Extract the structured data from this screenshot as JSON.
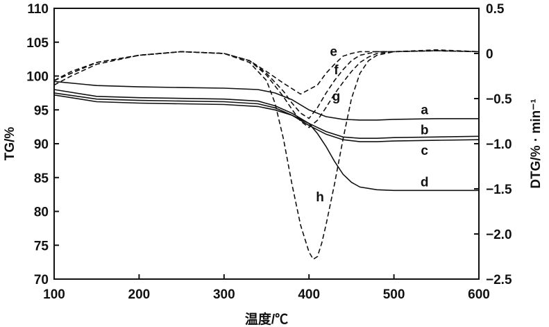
{
  "chart_data": {
    "type": "line",
    "title": "",
    "xlabel": "温度/℃",
    "ylabel": "TG/%",
    "y2label": "DTG/% · min⁻¹",
    "xlim": [
      100,
      600
    ],
    "ylim": [
      70,
      110
    ],
    "y2lim": [
      -2.5,
      0.5
    ],
    "xticks": [
      "100",
      "200",
      "300",
      "400",
      "500",
      "600"
    ],
    "yticks": [
      "70",
      "75",
      "80",
      "85",
      "90",
      "95",
      "100",
      "105",
      "110"
    ],
    "y2ticks": [
      "−2.5",
      "−2.0",
      "−1.5",
      "−1.0",
      "−0.5",
      "0",
      "0.5"
    ],
    "grid": false,
    "legend": "none",
    "tg_series": [
      {
        "name": "a",
        "style": "solid",
        "x": [
          100,
          150,
          200,
          250,
          300,
          340,
          360,
          380,
          400,
          420,
          440,
          460,
          480,
          500,
          550,
          600
        ],
        "y": [
          99.2,
          98.6,
          98.4,
          98.3,
          98.2,
          98.0,
          97.5,
          96.5,
          95.0,
          94.0,
          93.6,
          93.5,
          93.5,
          93.6,
          93.7,
          93.7
        ]
      },
      {
        "name": "b",
        "style": "solid",
        "x": [
          100,
          150,
          200,
          250,
          300,
          340,
          360,
          380,
          400,
          420,
          440,
          460,
          480,
          500,
          550,
          600
        ],
        "y": [
          98.0,
          97.0,
          96.8,
          96.7,
          96.6,
          96.3,
          95.6,
          94.5,
          93.0,
          91.8,
          91.0,
          90.8,
          90.8,
          90.9,
          91.0,
          91.1
        ]
      },
      {
        "name": "c",
        "style": "solid",
        "x": [
          100,
          150,
          200,
          250,
          300,
          340,
          360,
          380,
          400,
          420,
          440,
          460,
          480,
          500,
          550,
          600
        ],
        "y": [
          97.5,
          96.6,
          96.4,
          96.3,
          96.2,
          95.9,
          95.3,
          94.2,
          92.7,
          91.4,
          90.6,
          90.3,
          90.3,
          90.4,
          90.5,
          90.6
        ]
      },
      {
        "name": "d",
        "style": "solid",
        "x": [
          100,
          150,
          200,
          250,
          300,
          340,
          360,
          380,
          400,
          410,
          420,
          430,
          440,
          450,
          460,
          480,
          500,
          550,
          600
        ],
        "y": [
          97.2,
          96.2,
          96.0,
          95.9,
          95.8,
          95.5,
          95.0,
          94.2,
          93.0,
          91.5,
          89.6,
          87.4,
          85.5,
          84.3,
          83.6,
          83.2,
          83.1,
          83.1,
          83.1
        ]
      }
    ],
    "dtg_series": [
      {
        "name": "e",
        "style": "dashed",
        "x": [
          100,
          120,
          150,
          200,
          250,
          300,
          330,
          350,
          370,
          390,
          410,
          420,
          430,
          440,
          450,
          460,
          480,
          500,
          550,
          600
        ],
        "y": [
          -0.35,
          -0.25,
          -0.12,
          -0.02,
          0.02,
          0.0,
          -0.08,
          -0.2,
          -0.33,
          -0.45,
          -0.35,
          -0.22,
          -0.12,
          -0.03,
          0.0,
          0.02,
          0.02,
          0.02,
          0.04,
          0.02
        ]
      },
      {
        "name": "f",
        "style": "dashed",
        "x": [
          100,
          120,
          150,
          200,
          250,
          300,
          330,
          350,
          370,
          380,
          390,
          400,
          410,
          420,
          430,
          440,
          450,
          460,
          470,
          480,
          500,
          550,
          600
        ],
        "y": [
          -0.3,
          -0.22,
          -0.1,
          -0.02,
          0.02,
          0.0,
          -0.08,
          -0.22,
          -0.42,
          -0.55,
          -0.66,
          -0.72,
          -0.6,
          -0.44,
          -0.3,
          -0.18,
          -0.08,
          -0.02,
          0.0,
          0.02,
          0.02,
          0.03,
          0.02
        ]
      },
      {
        "name": "g",
        "style": "dashed",
        "x": [
          100,
          120,
          150,
          200,
          250,
          300,
          330,
          350,
          370,
          380,
          390,
          400,
          410,
          420,
          430,
          440,
          450,
          460,
          470,
          480,
          500,
          550,
          600
        ],
        "y": [
          -0.3,
          -0.22,
          -0.1,
          -0.02,
          0.02,
          0.0,
          -0.08,
          -0.24,
          -0.48,
          -0.62,
          -0.75,
          -0.82,
          -0.74,
          -0.6,
          -0.45,
          -0.32,
          -0.2,
          -0.1,
          -0.04,
          0.0,
          0.02,
          0.03,
          0.02
        ]
      },
      {
        "name": "h",
        "style": "dashed",
        "x": [
          100,
          120,
          150,
          200,
          250,
          300,
          330,
          350,
          360,
          370,
          380,
          390,
          400,
          405,
          410,
          415,
          420,
          430,
          440,
          450,
          460,
          470,
          480,
          490,
          500,
          550,
          600
        ],
        "y": [
          -0.3,
          -0.2,
          -0.1,
          -0.02,
          0.02,
          0.0,
          -0.1,
          -0.3,
          -0.55,
          -0.95,
          -1.45,
          -1.9,
          -2.2,
          -2.28,
          -2.25,
          -2.1,
          -1.9,
          -1.45,
          -0.95,
          -0.5,
          -0.22,
          -0.08,
          -0.02,
          0.0,
          0.02,
          0.03,
          0.02
        ]
      }
    ],
    "curve_labels": [
      {
        "text": "a",
        "x": 536,
        "y_tg": 95.1
      },
      {
        "text": "b",
        "x": 536,
        "y_tg": 92.1
      },
      {
        "text": "c",
        "x": 536,
        "y_tg": 89.1
      },
      {
        "text": "d",
        "x": 536,
        "y_tg": 84.4
      },
      {
        "text": "e",
        "x": 429,
        "y_tg": 103.7
      },
      {
        "text": "f",
        "x": 432,
        "y_tg": 101.0
      },
      {
        "text": "g",
        "x": 432,
        "y_tg": 97.1
      },
      {
        "text": "h",
        "x": 413,
        "y_tg": 82.2
      }
    ]
  }
}
